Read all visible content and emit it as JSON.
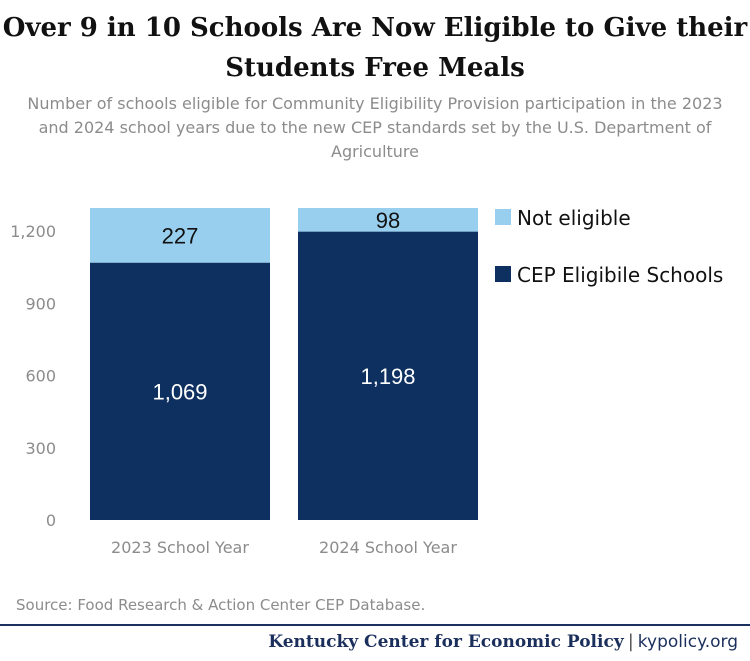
{
  "chart_data": {
    "type": "bar",
    "stacked": true,
    "title": "Over 9 in 10 Schools Are Now Eligible to Give their Students Free Meals",
    "subtitle": "Number of schools eligible for Community Eligibility Provision participation in the 2023 and 2024 school years due to the new CEP standards set by the U.S. Department of Agriculture",
    "categories": [
      "2023 School Year",
      "2024 School Year"
    ],
    "series": [
      {
        "name": "CEP Eligibile Schools",
        "values": [
          1069,
          1198
        ],
        "color": "#0d3060",
        "label_color": "#ffffff"
      },
      {
        "name": "Not eligible",
        "values": [
          227,
          98
        ],
        "color": "#99cfee",
        "label_color": "#111111"
      }
    ],
    "data_labels": {
      "CEP Eligibile Schools": [
        "1,069",
        "1,198"
      ],
      "Not eligible": [
        "227",
        "98"
      ]
    },
    "y_ticks": [
      "0",
      "300",
      "600",
      "900",
      "1,200"
    ],
    "y_tick_values": [
      0,
      300,
      600,
      900,
      1200
    ],
    "ylim": [
      0,
      1296
    ],
    "xlabel": "",
    "ylabel": "",
    "grid": false,
    "legend_position": "right"
  },
  "source": "Source: Food Research & Action Center CEP Database.",
  "footer": {
    "org": "Kentucky Center for Economic Policy",
    "separator": "|",
    "site": "kypolicy.org"
  },
  "colors": {
    "cep": "#0d3060",
    "not_eligible": "#99cfee",
    "axis_text": "#8c8c8c",
    "brand": "#1b2f5c"
  }
}
